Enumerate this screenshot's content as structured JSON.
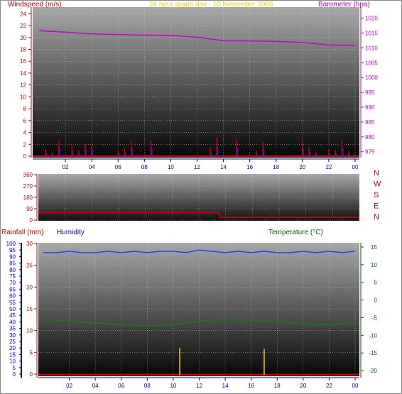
{
  "page": {
    "title": "24 hour graph day : 10 November 2005",
    "colors": {
      "wind": "#cc0000",
      "baro": "#cc00cc",
      "title": "#ffcc00",
      "dir": "#cc0000",
      "rain": "#cc0000",
      "humidity": "#0000cc",
      "temperature": "#006600",
      "axis_blue": "#0000aa",
      "rain_bar": "#ffcc00"
    }
  },
  "chart_data": [
    {
      "type": "line",
      "title": "24 hour graph day : 10 November 2005",
      "x_ticks": [
        "02",
        "04",
        "06",
        "08",
        "10",
        "12",
        "14",
        "16",
        "18",
        "20",
        "22",
        "00"
      ],
      "series": [
        {
          "name": "Windspeed (m/s)",
          "axis": "left",
          "ylim": [
            0,
            25
          ],
          "y_ticks": [
            0,
            2,
            4,
            6,
            8,
            10,
            12,
            14,
            16,
            18,
            20,
            22,
            24
          ],
          "x": [
            0.0,
            0.5,
            1.0,
            1.5,
            2.0,
            2.5,
            3.0,
            3.5,
            4.0,
            4.5,
            5.0,
            5.5,
            6.0,
            6.5,
            7.0,
            7.5,
            8.0,
            8.5,
            9.0,
            9.5,
            10.0,
            10.5,
            11.0,
            11.5,
            12.0,
            12.5,
            13.0,
            13.5,
            14.0,
            14.5,
            15.0,
            15.5,
            16.0,
            16.5,
            17.0,
            17.5,
            18.0,
            18.5,
            19.0,
            19.5,
            20.0,
            20.5,
            21.0,
            21.5,
            22.0,
            22.5,
            23.0,
            23.5,
            24.0
          ],
          "values": [
            0,
            1.1,
            0.6,
            2.6,
            0,
            1.8,
            1.0,
            2.0,
            2.2,
            0,
            0,
            0,
            0.8,
            1.3,
            2.5,
            0.3,
            0.3,
            2.5,
            0,
            0,
            0,
            0,
            0,
            0,
            0,
            0,
            1.5,
            3.2,
            0,
            0,
            2.8,
            0,
            0,
            0.9,
            2.4,
            0,
            0,
            0,
            0,
            0,
            2.6,
            1.5,
            0.7,
            0,
            1.2,
            1.0,
            2.6,
            0.8,
            0.3
          ]
        },
        {
          "name": "Barometer (hpa)",
          "axis": "right",
          "ylim": [
            973.5,
            1023.5
          ],
          "y_ticks": [
            975,
            980,
            985,
            990,
            995,
            1000,
            1005,
            1010,
            1015,
            1020
          ],
          "x": [
            0,
            2,
            4,
            6,
            8,
            10,
            12,
            14,
            16,
            18,
            20,
            22,
            24
          ],
          "values": [
            1015.8,
            1015.3,
            1014.7,
            1014.5,
            1014.3,
            1014.2,
            1013.6,
            1012.4,
            1012.3,
            1012.2,
            1011.8,
            1011.0,
            1010.8
          ]
        }
      ]
    },
    {
      "type": "line",
      "title": "Wind direction",
      "x_ticks": [],
      "y_ticks": [
        0,
        90,
        180,
        270,
        360
      ],
      "direction_labels": [
        "N",
        "W",
        "S",
        "E",
        "N"
      ],
      "ylim": [
        0,
        360
      ],
      "series": [
        {
          "name": "Wind direction",
          "x": [
            0,
            13.5,
            13.6,
            24
          ],
          "values": [
            60,
            60,
            22,
            22
          ]
        }
      ]
    },
    {
      "type": "line",
      "title": "",
      "x_ticks": [
        "02",
        "04",
        "06",
        "08",
        "10",
        "12",
        "14",
        "16",
        "18",
        "20",
        "22",
        "00"
      ],
      "series": [
        {
          "name": "Rainfall (mm)",
          "axis": "left-inner",
          "ylim": [
            0,
            30
          ],
          "y_ticks": [
            0,
            5,
            10,
            15,
            20,
            25,
            30
          ],
          "x": [
            10.5,
            17.0
          ],
          "values": [
            6.0,
            5.8
          ]
        },
        {
          "name": "Humidity",
          "axis": "left-outer",
          "ylim": [
            0,
            100
          ],
          "y_ticks": [
            0,
            5,
            10,
            15,
            20,
            25,
            30,
            35,
            40,
            45,
            50,
            55,
            60,
            65,
            70,
            75,
            80,
            85,
            90,
            95,
            100
          ],
          "x": [
            0,
            1,
            2,
            3,
            4,
            5,
            6,
            7,
            8,
            9,
            10,
            11,
            12,
            13,
            14,
            15,
            16,
            17,
            18,
            19,
            20,
            21,
            22,
            23,
            24
          ],
          "values": [
            93,
            93,
            94,
            93,
            93,
            94,
            93,
            94,
            93,
            94,
            94,
            93,
            95,
            94,
            93,
            94,
            93,
            94,
            93,
            93,
            94,
            93,
            94,
            93,
            94
          ]
        },
        {
          "name": "Temperature (°C)",
          "axis": "right",
          "ylim": [
            -21,
            16
          ],
          "y_ticks": [
            -20,
            -15,
            -10,
            -5,
            0,
            5,
            10,
            15
          ],
          "x": [
            0,
            2,
            4,
            6,
            8,
            10,
            12,
            14,
            16,
            18,
            20,
            22,
            24
          ],
          "values": [
            -5.5,
            -6.0,
            -6.5,
            -7.0,
            -7.3,
            -7.0,
            -6.0,
            -5.5,
            -5.8,
            -6.0,
            -6.8,
            -7.0,
            -6.5
          ]
        }
      ]
    }
  ]
}
